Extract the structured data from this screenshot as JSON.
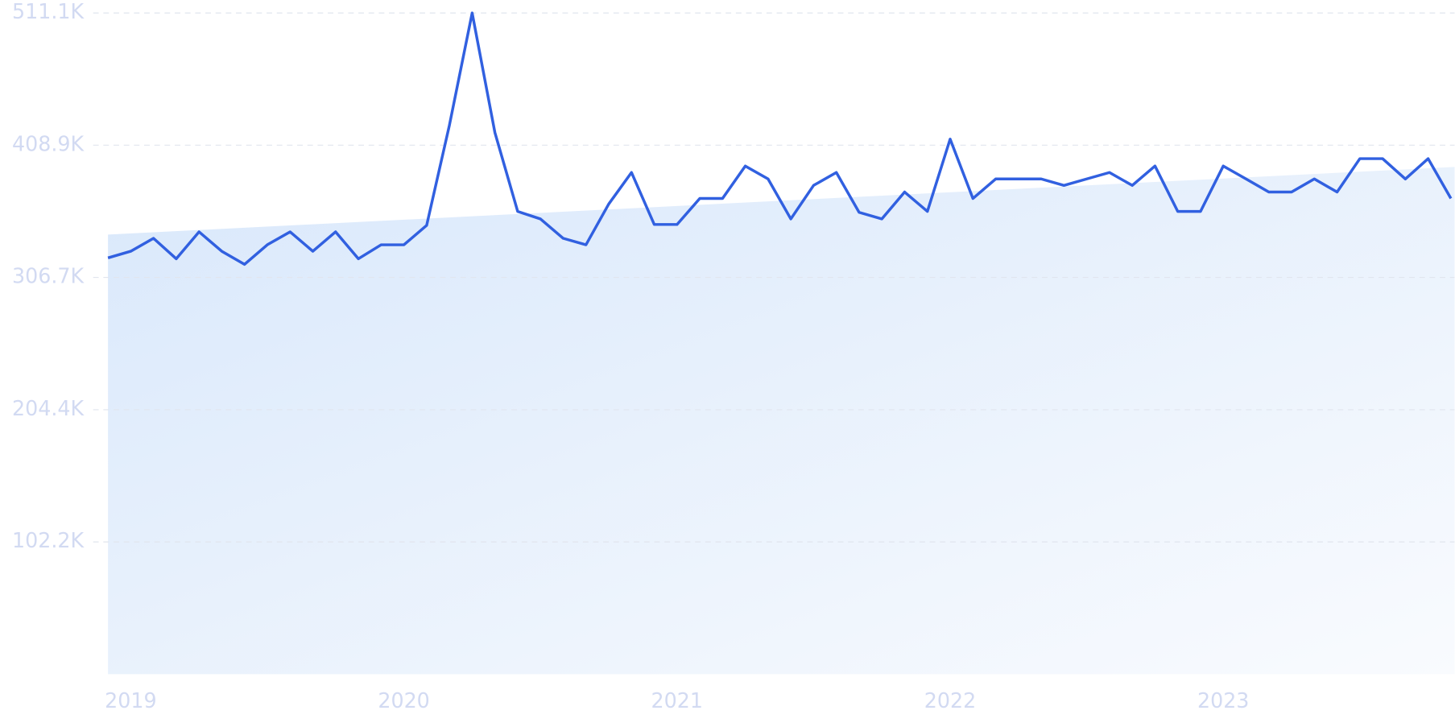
{
  "chart_data": {
    "type": "line",
    "categories": [
      null,
      "2019",
      null,
      null,
      null,
      null,
      null,
      null,
      null,
      null,
      null,
      null,
      null,
      "2020",
      null,
      null,
      null,
      null,
      null,
      null,
      null,
      null,
      null,
      null,
      null,
      "2021",
      null,
      null,
      null,
      null,
      null,
      null,
      null,
      null,
      null,
      null,
      null,
      "2022",
      null,
      null,
      null,
      null,
      null,
      null,
      null,
      null,
      null,
      null,
      null,
      "2023",
      null,
      null,
      null,
      null,
      null,
      null,
      null,
      null,
      null,
      null
    ],
    "series": [
      {
        "color": "#3160e0",
        "values": [
          321800,
          326900,
          336900,
          321100,
          341900,
          326900,
          316800,
          331900,
          341900,
          326900,
          341900,
          321100,
          331900,
          331900,
          346900,
          424300,
          511100,
          418600,
          357700,
          351900,
          336900,
          331900,
          363400,
          387800,
          347600,
          347600,
          367700,
          367700,
          392800,
          382800,
          351900,
          377800,
          387800,
          357000,
          351900,
          372700,
          357700,
          413600,
          367700,
          382800,
          382800,
          382800,
          377800,
          382800,
          387800,
          377800,
          392800,
          357700,
          357700,
          392800,
          382800,
          372700,
          372700,
          382800,
          372700,
          398500,
          398500,
          382800,
          398500,
          367700
        ]
      }
    ],
    "trend_values": [
      339800,
      392100
    ],
    "ylim": [
      0,
      511100
    ],
    "yticks": [
      {
        "value": 102200,
        "label": "102.2K"
      },
      {
        "value": 204400,
        "label": "204.4K"
      },
      {
        "value": 306700,
        "label": "306.7K"
      },
      {
        "value": 408900,
        "label": "408.9K"
      },
      {
        "value": 511100,
        "label": "511.1K"
      }
    ],
    "grid": true
  }
}
